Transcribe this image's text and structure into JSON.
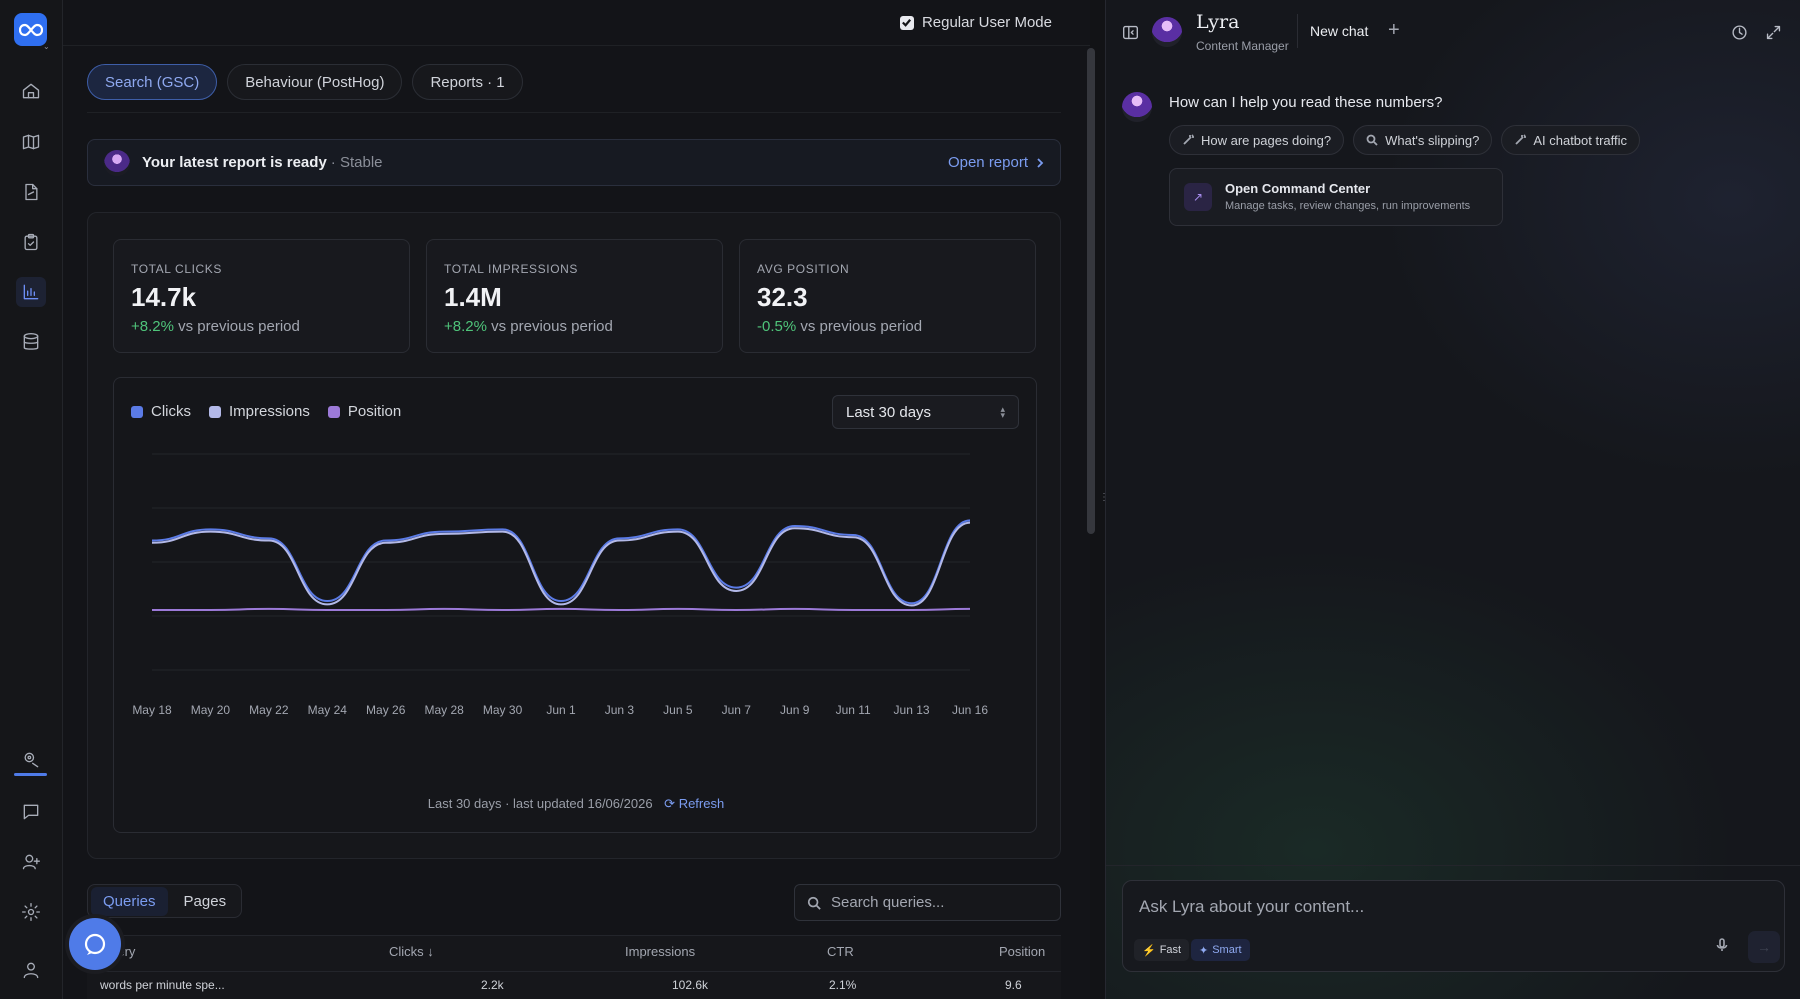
{
  "nav": {
    "items": [
      "home-icon",
      "map-icon",
      "file-icon",
      "clipboard-icon",
      "chart-icon",
      "database-icon"
    ],
    "bottom_items": [
      "location-icon",
      "message-icon",
      "user-add-icon",
      "gear-icon",
      "user-icon"
    ],
    "active": "chart-icon"
  },
  "topbar": {
    "mode_label": "Regular User Mode",
    "mode_checked": true
  },
  "tabs": [
    {
      "label": "Search (GSC)",
      "active": true
    },
    {
      "label": "Behaviour (PostHog)",
      "active": false
    },
    {
      "label": "Reports · 1",
      "active": false
    }
  ],
  "banner": {
    "title": "Your latest report is ready",
    "status": "· Stable",
    "link": "Open report"
  },
  "stats": [
    {
      "label": "TOTAL CLICKS",
      "value": "14.7k",
      "delta": "+8.2%",
      "suffix": " vs previous period"
    },
    {
      "label": "TOTAL IMPRESSIONS",
      "value": "1.4M",
      "delta": "+8.2%",
      "suffix": " vs previous period"
    },
    {
      "label": "AVG POSITION",
      "value": "32.3",
      "delta": "-0.5%",
      "suffix": " vs previous period"
    }
  ],
  "chart": {
    "range_label": "Last 30 days",
    "footer": "Last 30 days · last updated 16/06/2026",
    "refresh_label": "Refresh"
  },
  "chart_data": {
    "type": "line",
    "x": [
      "May 18",
      "May 20",
      "May 22",
      "May 24",
      "May 26",
      "May 28",
      "May 30",
      "Jun 1",
      "Jun 3",
      "Jun 5",
      "Jun 7",
      "Jun 9",
      "Jun 11",
      "Jun 13",
      "Jun 16"
    ],
    "series": [
      {
        "name": "Clicks",
        "color": "#5b7be6",
        "values": [
          0.62,
          0.72,
          0.64,
          0.08,
          0.62,
          0.7,
          0.72,
          0.08,
          0.64,
          0.72,
          0.2,
          0.75,
          0.67,
          0.06,
          0.8
        ]
      },
      {
        "name": "Impressions",
        "color": "#b3b9e8",
        "values": [
          0.6,
          0.7,
          0.62,
          0.05,
          0.6,
          0.68,
          0.7,
          0.05,
          0.62,
          0.7,
          0.17,
          0.73,
          0.65,
          0.04,
          0.78
        ]
      },
      {
        "name": "Position",
        "color": "#9c7ad8",
        "values": [
          0.0,
          0.0,
          0.01,
          0.0,
          0.0,
          0.01,
          0.0,
          0.01,
          0.0,
          0.01,
          0.0,
          0.01,
          0.0,
          0.0,
          0.01
        ]
      }
    ],
    "ylim": [
      0,
      1
    ],
    "grid": true
  },
  "table": {
    "subtabs": [
      "Queries",
      "Pages"
    ],
    "active_subtab": "Queries",
    "search_placeholder": "Search queries...",
    "headers": {
      "query": "Query",
      "clicks": "Clicks ↓",
      "impressions": "Impressions",
      "ctr": "CTR",
      "position": "Position"
    },
    "rows": [
      {
        "query": "words per minute spe...",
        "clicks": "2.2k",
        "impressions": "102.6k",
        "ctr": "2.1%",
        "position": "9.6"
      }
    ]
  },
  "assistant": {
    "name": "Lyra",
    "role": "Content Manager",
    "new_chat": "New chat",
    "greeting": "How can I help you read these numbers?",
    "chips": [
      {
        "label": "How are pages doing?",
        "icon": "wand-icon"
      },
      {
        "label": "What's slipping?",
        "icon": "search-icon"
      },
      {
        "label": "AI chatbot traffic",
        "icon": "wand-icon"
      }
    ],
    "command": {
      "title": "Open Command Center",
      "subtitle": "Manage tasks, review changes, run improvements"
    },
    "composer_placeholder": "Ask Lyra about your content...",
    "mode_fast": "Fast",
    "mode_smart": "Smart"
  }
}
